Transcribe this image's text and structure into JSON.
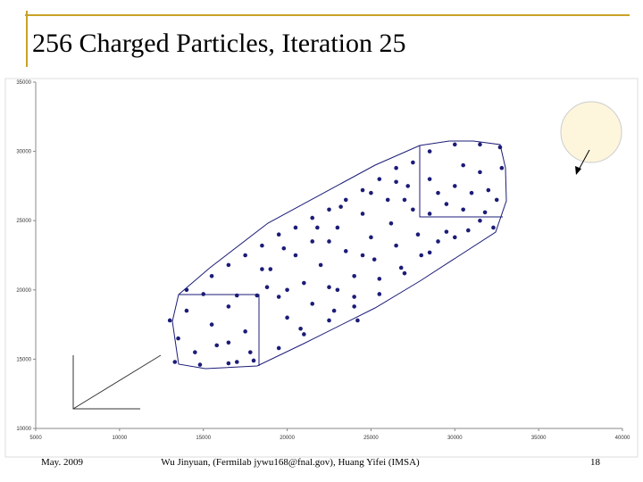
{
  "chart_data": {
    "type": "scatter",
    "title": "256 Charged Particles, Iteration 25",
    "x": [
      14000,
      15500,
      16500,
      17500,
      18500,
      19500,
      20500,
      21500,
      22500,
      23500,
      24500,
      25500,
      26500,
      27500,
      28500,
      30000,
      31500,
      32700,
      13300,
      14800,
      16500,
      18000,
      19500,
      21000,
      22500,
      24000,
      25500,
      27000,
      28500,
      30000,
      31500,
      32500,
      13000,
      13500,
      14000,
      15000,
      15500,
      14500,
      15800,
      16500,
      17000,
      17500,
      16500,
      17800,
      18200,
      17000,
      30500,
      31500,
      32800,
      30000,
      31000,
      32000,
      29500,
      30500,
      31800,
      32300,
      29500,
      30800,
      28500,
      28500,
      19000,
      19500,
      20000,
      20500,
      21000,
      21500,
      21500,
      22000,
      22500,
      22800,
      23000,
      23500,
      24000,
      24000,
      24500,
      25000,
      25200,
      25500,
      26000,
      26200,
      26500,
      26800,
      27200,
      27500,
      27800,
      28000,
      20000,
      23200,
      25000,
      26500,
      21800,
      19800,
      18500,
      18800,
      22500,
      24500,
      27000,
      29000,
      29000,
      24200,
      20800,
      23000
    ],
    "values": [
      20000,
      21000,
      21800,
      22500,
      23200,
      24000,
      24500,
      25200,
      25800,
      26500,
      27200,
      28000,
      28800,
      29200,
      30000,
      30500,
      30500,
      30300,
      14800,
      14600,
      14700,
      14900,
      15800,
      16800,
      17800,
      18800,
      19700,
      21200,
      22700,
      23800,
      25000,
      26500,
      17800,
      16500,
      18500,
      19700,
      17500,
      15500,
      16000,
      18800,
      19600,
      17000,
      16200,
      15500,
      19600,
      14800,
      29000,
      28500,
      28800,
      27500,
      27000,
      27200,
      26200,
      25800,
      25600,
      24500,
      24200,
      24300,
      28000,
      25500,
      21500,
      19500,
      18000,
      22500,
      20500,
      19000,
      23500,
      21800,
      20200,
      18500,
      24500,
      22800,
      21000,
      19500,
      25500,
      23800,
      22200,
      20800,
      26500,
      24800,
      23200,
      21600,
      27500,
      25800,
      24000,
      22500,
      20000,
      26000,
      27000,
      27800,
      24500,
      23000,
      21500,
      20200,
      23500,
      22500,
      26500,
      27000,
      23500,
      17800,
      17200,
      20000
    ],
    "color": "#1c1c78",
    "xlim": [
      5000,
      40000
    ],
    "xticks": [
      5000,
      10000,
      15000,
      20000,
      25000,
      30000,
      35000,
      40000
    ],
    "ylim": [
      10000,
      35000
    ],
    "yticks": [
      10000,
      15000,
      20000,
      25000,
      30000,
      35000
    ]
  },
  "footer": {
    "date": "May. 2009",
    "authors": "Wu Jinyuan, (Fermilab jywu168@fnal.gov), Huang Yifei (IMSA)",
    "page": "18"
  }
}
